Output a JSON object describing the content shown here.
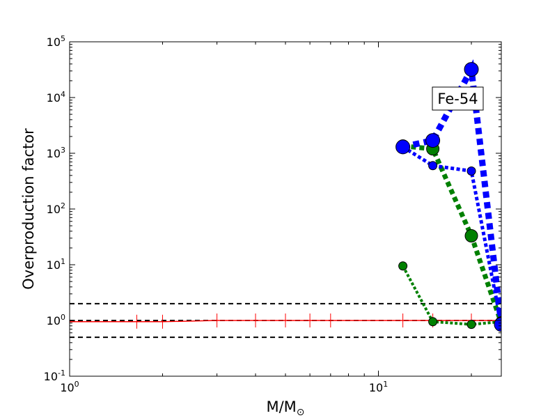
{
  "chart_data": {
    "type": "line",
    "xscale": "log",
    "yscale": "log",
    "xlim": [
      1,
      25
    ],
    "ylim": [
      0.1,
      100000
    ],
    "xlabel_main": "M/M",
    "xlabel_sub": "⊙",
    "ylabel": "Overproduction factor",
    "annotation": "Fe-54",
    "x_ticks": [
      {
        "value": 1,
        "base": "10",
        "exp": "0"
      },
      {
        "value": 10,
        "base": "10",
        "exp": "1"
      }
    ],
    "y_ticks": [
      {
        "value": 0.1,
        "base": "10",
        "exp": "-1"
      },
      {
        "value": 1,
        "base": "10",
        "exp": "0"
      },
      {
        "value": 10,
        "base": "10",
        "exp": "1"
      },
      {
        "value": 100,
        "base": "10",
        "exp": "2"
      },
      {
        "value": 1000,
        "base": "10",
        "exp": "3"
      },
      {
        "value": 10000,
        "base": "10",
        "exp": "4"
      },
      {
        "value": 100000,
        "base": "10",
        "exp": "5"
      }
    ],
    "reference_lines": [
      {
        "y": 2,
        "color": "#000000"
      },
      {
        "y": 1,
        "color": "#000000"
      },
      {
        "y": 0.5,
        "color": "#000000"
      }
    ],
    "red_series": {
      "color": "#ff0000",
      "x": [
        1,
        1.65,
        2,
        3,
        4,
        5,
        6,
        7,
        12,
        15,
        20,
        25
      ],
      "y": [
        0.95,
        0.95,
        0.95,
        1.0,
        1.0,
        1.0,
        1.0,
        1.0,
        1.0,
        1.0,
        1.0,
        1.0
      ]
    },
    "series": [
      {
        "color": "#008000",
        "width": 4,
        "marker_r": 6,
        "x": [
          12,
          15,
          20,
          25
        ],
        "y": [
          9.5,
          0.95,
          0.85,
          0.95
        ]
      },
      {
        "color": "#008000",
        "width": 7,
        "marker_r": 9,
        "x": [
          12,
          15,
          20,
          25
        ],
        "y": [
          1350,
          1200,
          33,
          0.9
        ]
      },
      {
        "color": "#0000ff",
        "width": 5,
        "marker_r": 6,
        "x": [
          12,
          15,
          20,
          25
        ],
        "y": [
          1300,
          600,
          480,
          0.85
        ]
      },
      {
        "color": "#0000ff",
        "width": 9,
        "marker_r": 10,
        "x": [
          12,
          15,
          20,
          25
        ],
        "y": [
          1300,
          1700,
          32000,
          0.85
        ]
      }
    ]
  }
}
